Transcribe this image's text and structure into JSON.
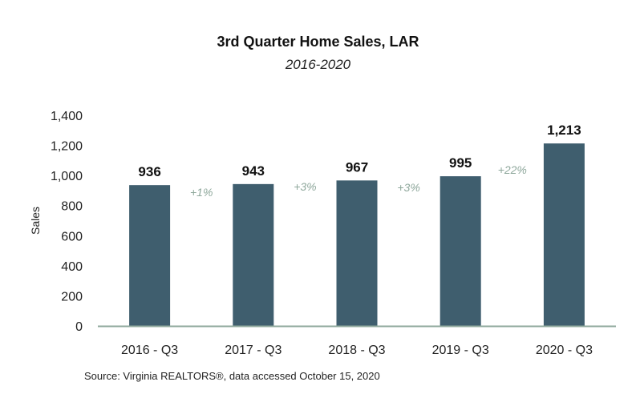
{
  "chart_data": {
    "type": "bar",
    "title": "3rd Quarter Home Sales, LAR",
    "subtitle": "2016-2020",
    "ylabel": "Sales",
    "xlabel": "",
    "categories": [
      "2016 - Q3",
      "2017 - Q3",
      "2018 - Q3",
      "2019 - Q3",
      "2020 - Q3"
    ],
    "values": [
      936,
      943,
      967,
      995,
      1213
    ],
    "value_labels": [
      "936",
      "943",
      "967",
      "995",
      "1,213"
    ],
    "change_labels": [
      "+1%",
      "+3%",
      "+3%",
      "+22%"
    ],
    "ylim": [
      0,
      1400
    ],
    "yticks": [
      0,
      200,
      400,
      600,
      800,
      1000,
      1200,
      1400
    ],
    "ytick_labels": [
      "0",
      "200",
      "400",
      "600",
      "800",
      "1,000",
      "1,200",
      "1,400"
    ],
    "grid": false,
    "legend": "none",
    "colors": {
      "bar": "#3f5e6e",
      "axis": "#8fa89c",
      "change": "#8fa89c"
    }
  },
  "source": "Source: Virginia REALTORS®, data accessed October 15, 2020"
}
